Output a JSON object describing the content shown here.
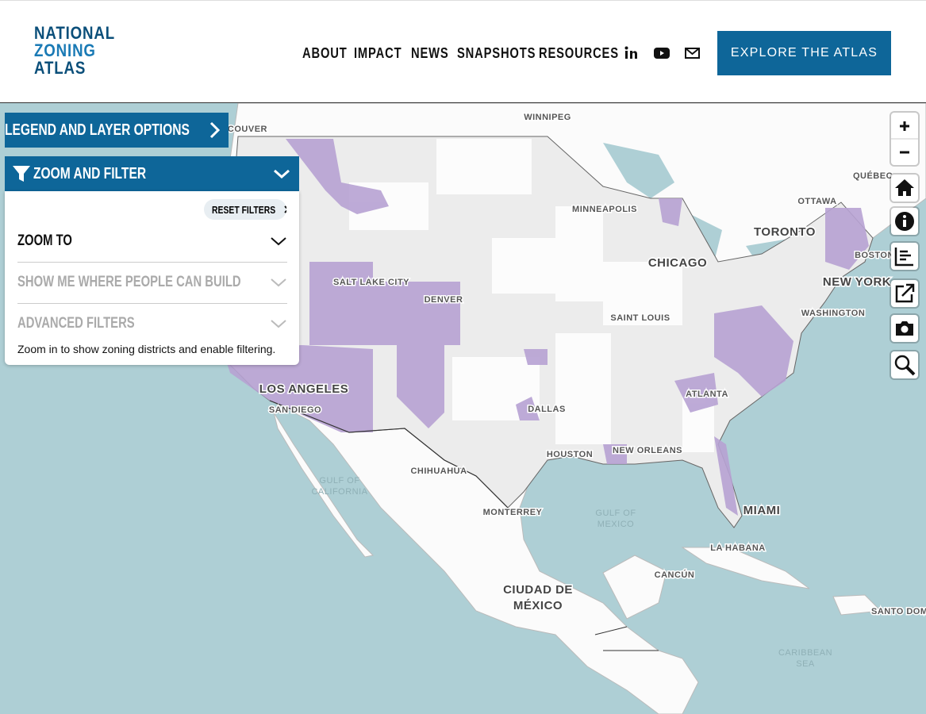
{
  "header": {
    "logo": [
      "NATIONAL",
      "ZONING",
      "ATLAS"
    ],
    "nav": [
      "ABOUT",
      "IMPACT",
      "NEWS",
      "SNAPSHOTS",
      "RESOURCES"
    ],
    "cta": "EXPLORE THE ATLAS"
  },
  "panel": {
    "legend": "LEGEND AND LAYER OPTIONS",
    "zoom_filter": "ZOOM AND FILTER",
    "reset": "RESET FILTERS",
    "sections": [
      "ZOOM TO",
      "SHOW ME WHERE PEOPLE CAN BUILD",
      "ADVANCED FILTERS"
    ],
    "note": "Zoom in to show zoning districts and enable filtering."
  },
  "map": {
    "labels": {
      "vancouver": "VANCOUVER",
      "winnipeg": "WINNIPEG",
      "quebec": "QUÉBEC",
      "ottawa": "OTTAWA",
      "minneapolis": "MINNEAPOLIS",
      "toronto": "TORONTO",
      "boston": "BOSTON",
      "chicago": "CHICAGO",
      "new_york": "NEW YORK",
      "salt_lake_city": "SALT LAKE CITY",
      "denver": "DENVER",
      "saint_louis": "SAINT LOUIS",
      "washington": "WASHINGTON",
      "los_angeles": "LOS ANGELES",
      "san_diego": "SAN DIEGO",
      "atlanta": "ATLANTA",
      "dallas": "DALLAS",
      "houston": "HOUSTON",
      "new_orleans": "NEW ORLEANS",
      "chihuahua": "CHIHUAHUA",
      "gulf_of_california": [
        "GULF OF",
        "CALIFORNIA"
      ],
      "monterrey": "MONTERREY",
      "gulf_of_mexico": [
        "GULF OF",
        "MEXICO"
      ],
      "miami": "MIAMI",
      "la_habana": "LA HABANA",
      "cancun": "CANCÚN",
      "ciudad_de_mexico": [
        "CIUDAD DE",
        "MÉXICO"
      ],
      "santo_domingo": "SANTO DOMINGO",
      "caribbean_sea": [
        "CARIBBEAN",
        "SEA"
      ]
    }
  }
}
